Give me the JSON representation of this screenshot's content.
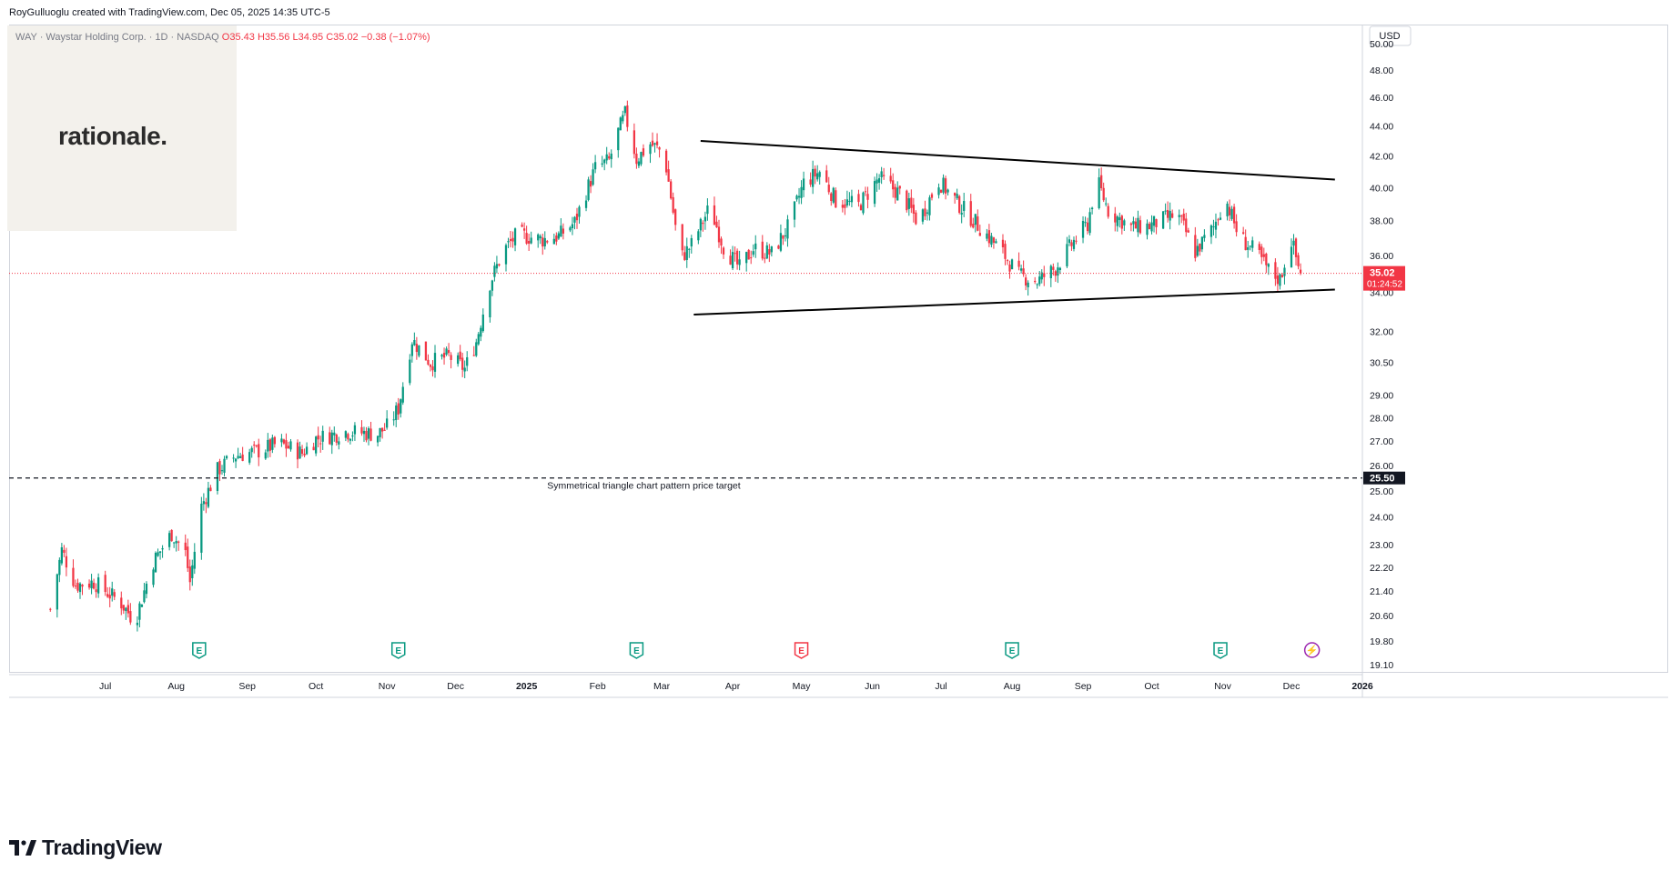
{
  "header": {
    "credit": "RoyGulluoglu created with TradingView.com, Dec 05, 2025 14:35 UTC-5"
  },
  "symbol": {
    "name": "WAY · Waystar Holding Corp. · 1D · NASDAQ",
    "open": "O35.43",
    "high": "H35.56",
    "low": "L34.95",
    "close": "C35.02",
    "change": "−0.38 (−1.07%)"
  },
  "logo": {
    "text": "rationale."
  },
  "footer": {
    "brand": "TradingView",
    "logo_icon": "tradingview-logo-icon"
  },
  "colors": {
    "up": "#089981",
    "down": "#f23645",
    "text": "#131722",
    "muted": "#787b86",
    "current_price_bg": "#f23645",
    "target_bg": "#131722"
  },
  "chart_data": {
    "type": "candlestick",
    "currency": "USD",
    "y_scale": "log",
    "ylim": [
      18.8,
      51.5
    ],
    "y_ticks": [
      "50.00",
      "48.00",
      "46.00",
      "44.00",
      "42.00",
      "40.00",
      "38.00",
      "36.00",
      "34.00",
      "32.00",
      "30.50",
      "29.00",
      "28.00",
      "27.00",
      "26.00",
      "25.00",
      "24.00",
      "23.00",
      "22.20",
      "21.40",
      "20.60",
      "19.80",
      "19.10"
    ],
    "x_ticks": [
      {
        "date": "2024-07-01",
        "label": "Jul",
        "bold": false
      },
      {
        "date": "2024-08-01",
        "label": "Aug",
        "bold": false
      },
      {
        "date": "2024-09-01",
        "label": "Sep",
        "bold": false
      },
      {
        "date": "2024-10-01",
        "label": "Oct",
        "bold": false
      },
      {
        "date": "2024-11-01",
        "label": "Nov",
        "bold": false
      },
      {
        "date": "2024-12-01",
        "label": "Dec",
        "bold": false
      },
      {
        "date": "2025-01-01",
        "label": "2025",
        "bold": true
      },
      {
        "date": "2025-02-01",
        "label": "Feb",
        "bold": false
      },
      {
        "date": "2025-03-01",
        "label": "Mar",
        "bold": false
      },
      {
        "date": "2025-04-01",
        "label": "Apr",
        "bold": false
      },
      {
        "date": "2025-05-01",
        "label": "May",
        "bold": false
      },
      {
        "date": "2025-06-01",
        "label": "Jun",
        "bold": false
      },
      {
        "date": "2025-07-01",
        "label": "Jul",
        "bold": false
      },
      {
        "date": "2025-08-01",
        "label": "Aug",
        "bold": false
      },
      {
        "date": "2025-09-01",
        "label": "Sep",
        "bold": false
      },
      {
        "date": "2025-10-01",
        "label": "Oct",
        "bold": false
      },
      {
        "date": "2025-11-01",
        "label": "Nov",
        "bold": false
      },
      {
        "date": "2025-12-01",
        "label": "Dec",
        "bold": false
      },
      {
        "date": "2026-01-01",
        "label": "2026",
        "bold": true
      }
    ],
    "xlim": [
      "2024-05-20",
      "2026-01-01"
    ],
    "price_path": [
      [
        "2024-06-07",
        20.8
      ],
      [
        "2024-06-12",
        22.8
      ],
      [
        "2024-06-18",
        21.6
      ],
      [
        "2024-06-26",
        21.7
      ],
      [
        "2024-07-08",
        21.0
      ],
      [
        "2024-07-14",
        20.4
      ],
      [
        "2024-07-22",
        22.4
      ],
      [
        "2024-07-30",
        23.4
      ],
      [
        "2024-08-05",
        22.7
      ],
      [
        "2024-08-07",
        21.7
      ],
      [
        "2024-08-12",
        24.4
      ],
      [
        "2024-08-19",
        25.8
      ],
      [
        "2024-08-27",
        26.4
      ],
      [
        "2024-09-06",
        26.6
      ],
      [
        "2024-09-15",
        26.9
      ],
      [
        "2024-09-25",
        26.5
      ],
      [
        "2024-10-01",
        27.1
      ],
      [
        "2024-10-14",
        27.4
      ],
      [
        "2024-10-28",
        27.3
      ],
      [
        "2024-11-01",
        27.6
      ],
      [
        "2024-11-06",
        28.4
      ],
      [
        "2024-11-12",
        31.6
      ],
      [
        "2024-11-20",
        30.5
      ],
      [
        "2024-11-28",
        30.8
      ],
      [
        "2024-12-05",
        30.2
      ],
      [
        "2024-12-10",
        31.5
      ],
      [
        "2024-12-16",
        34.5
      ],
      [
        "2024-12-22",
        36.3
      ],
      [
        "2024-12-28",
        37.2
      ],
      [
        "2025-01-08",
        36.9
      ],
      [
        "2025-01-15",
        37.1
      ],
      [
        "2025-01-22",
        37.9
      ],
      [
        "2025-01-31",
        41.2
      ],
      [
        "2025-02-06",
        41.7
      ],
      [
        "2025-02-10",
        43.6
      ],
      [
        "2025-02-13",
        44.8
      ],
      [
        "2025-02-18",
        41.8
      ],
      [
        "2025-02-24",
        42.8
      ],
      [
        "2025-03-02",
        42.2
      ],
      [
        "2025-03-06",
        38.5
      ],
      [
        "2025-03-09",
        35.8
      ],
      [
        "2025-03-14",
        36.6
      ],
      [
        "2025-03-22",
        38.8
      ],
      [
        "2025-03-28",
        36.5
      ],
      [
        "2025-04-04",
        35.3
      ],
      [
        "2025-04-10",
        36.4
      ],
      [
        "2025-04-18",
        36.1
      ],
      [
        "2025-04-26",
        37.8
      ],
      [
        "2025-05-02",
        40.3
      ],
      [
        "2025-05-09",
        41.0
      ],
      [
        "2025-05-16",
        39.2
      ],
      [
        "2025-05-26",
        38.9
      ],
      [
        "2025-06-04",
        40.6
      ],
      [
        "2025-06-14",
        39.5
      ],
      [
        "2025-06-21",
        37.9
      ],
      [
        "2025-06-30",
        40.4
      ],
      [
        "2025-07-08",
        39.1
      ],
      [
        "2025-07-18",
        37.6
      ],
      [
        "2025-07-27",
        36.3
      ],
      [
        "2025-08-04",
        34.9
      ],
      [
        "2025-08-12",
        34.6
      ],
      [
        "2025-08-20",
        35.3
      ],
      [
        "2025-08-28",
        36.8
      ],
      [
        "2025-09-03",
        37.8
      ],
      [
        "2025-09-07",
        40.5
      ],
      [
        "2025-09-12",
        38.6
      ],
      [
        "2025-09-22",
        37.6
      ],
      [
        "2025-09-30",
        37.7
      ],
      [
        "2025-10-12",
        38.4
      ],
      [
        "2025-10-20",
        36.2
      ],
      [
        "2025-10-28",
        37.6
      ],
      [
        "2025-11-02",
        39.4
      ],
      [
        "2025-11-08",
        37.1
      ],
      [
        "2025-11-16",
        36.1
      ],
      [
        "2025-11-22",
        35.0
      ],
      [
        "2025-11-26",
        34.7
      ],
      [
        "2025-12-01",
        36.9
      ],
      [
        "2025-12-04",
        35.4
      ],
      [
        "2025-12-05",
        35.02
      ]
    ],
    "current_price": {
      "value": 35.02,
      "label": "35.02",
      "countdown": "01:24:52"
    },
    "trendlines": [
      {
        "name": "upper-trendline",
        "from": [
          "2025-03-18",
          43.0
        ],
        "to": [
          "2025-12-20",
          40.5
        ]
      },
      {
        "name": "lower-trendline",
        "from": [
          "2025-03-15",
          32.85
        ],
        "to": [
          "2025-12-20",
          34.15
        ]
      }
    ],
    "target_line": {
      "value": 25.5,
      "label": "25.50",
      "annotation": "Symmetrical triangle chart pattern price target"
    },
    "events": [
      {
        "date": "2024-08-11",
        "type": "earnings",
        "glyph": "E"
      },
      {
        "date": "2024-11-06",
        "type": "earnings",
        "glyph": "E"
      },
      {
        "date": "2025-02-18",
        "type": "earnings",
        "glyph": "E"
      },
      {
        "date": "2025-05-01",
        "type": "earnings-missed",
        "glyph": "E"
      },
      {
        "date": "2025-08-01",
        "type": "earnings",
        "glyph": "E"
      },
      {
        "date": "2025-10-31",
        "type": "earnings",
        "glyph": "E"
      },
      {
        "date": "2025-12-10",
        "type": "flash",
        "glyph": "⚡"
      }
    ]
  }
}
